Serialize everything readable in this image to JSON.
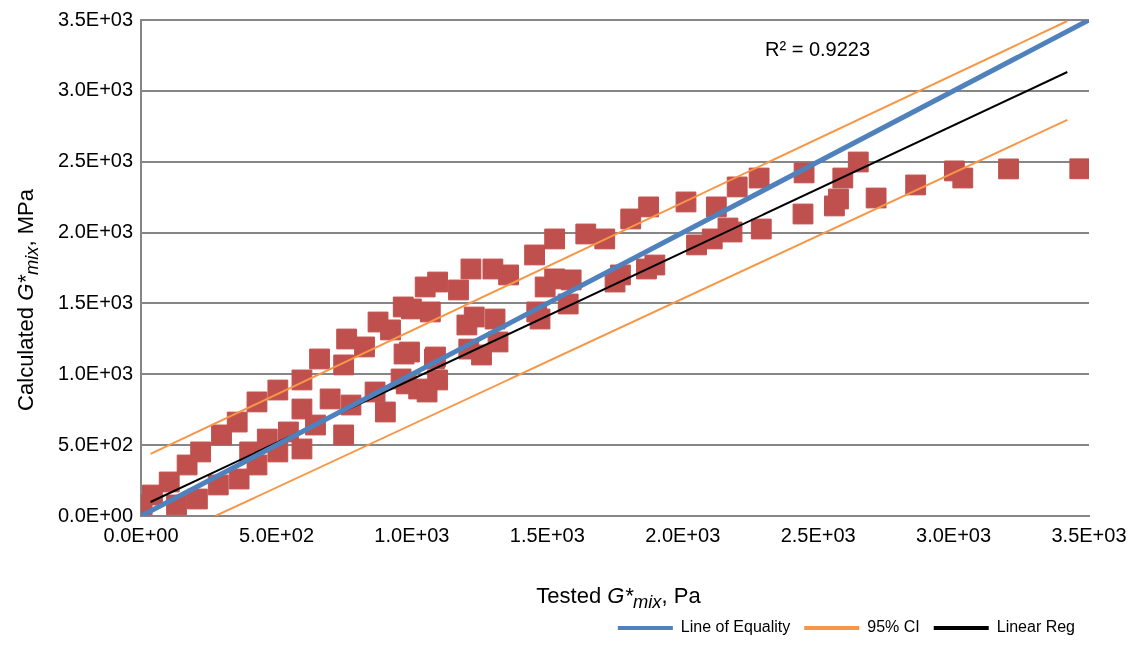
{
  "chart_data": {
    "type": "scatter",
    "xlabel": "Tested G*$_{mix}$, Pa",
    "ylabel": "Calculated G*$_{mix}$, MPa",
    "xlim": [
      0,
      3500
    ],
    "ylim": [
      0,
      3500
    ],
    "xticks": [
      {
        "value": 0,
        "label": "0.0E+00"
      },
      {
        "value": 500,
        "label": "5.0E+02"
      },
      {
        "value": 1000,
        "label": "1.0E+03"
      },
      {
        "value": 1500,
        "label": "1.5E+03"
      },
      {
        "value": 2000,
        "label": "2.0E+03"
      },
      {
        "value": 2500,
        "label": "2.5E+03"
      },
      {
        "value": 3000,
        "label": "3.0E+03"
      },
      {
        "value": 3500,
        "label": "3.5E+03"
      }
    ],
    "yticks": [
      {
        "value": 0,
        "label": "0.0E+00"
      },
      {
        "value": 500,
        "label": "5.0E+02"
      },
      {
        "value": 1000,
        "label": "1.0E+03"
      },
      {
        "value": 1500,
        "label": "1.5E+03"
      },
      {
        "value": 2000,
        "label": "2.0E+03"
      },
      {
        "value": 2500,
        "label": "2.5E+03"
      },
      {
        "value": 3000,
        "label": "3.0E+03"
      },
      {
        "value": 3500,
        "label": "3.5E+03"
      }
    ],
    "grid": "y",
    "legend": "bottom right",
    "annotations": [
      "R² = 0.9223"
    ],
    "series": [
      {
        "marker": "square",
        "color": "#c0504d",
        "x": [
          3466,
          3203,
          3003,
          3034,
          2860,
          2714,
          2648,
          2591,
          2575,
          2560,
          2444,
          2448,
          2167,
          2282,
          2290,
          2201,
          2182,
          2124,
          2109,
          2051,
          2012,
          1874,
          1808,
          1897,
          1866,
          1770,
          1750,
          1712,
          1642,
          1527,
          1453,
          1527,
          1588,
          1492,
          1577,
          1461,
          1473,
          1357,
          1299,
          1218,
          1172,
          1095,
          1049,
          1068,
          998,
          1230,
          1307,
          1203,
          1318,
          1210,
          1257,
          1087,
          971,
          1095,
          1025,
          960,
          968,
          875,
          921,
          759,
          825,
          659,
          748,
          594,
          505,
          428,
          355,
          297,
          220,
          170,
          104,
          42,
          4,
          991,
          1083,
          979,
          1056,
          864,
          902,
          775,
          698,
          594,
          644,
          748,
          544,
          505,
          594,
          428,
          362,
          285,
          208,
          131,
          466,
          401
        ],
        "values": [
          2450,
          2449,
          2435,
          2385,
          2336,
          2244,
          2498,
          2385,
          2237,
          2188,
          2131,
          2421,
          2032,
          2385,
          2025,
          2322,
          2004,
          2181,
          1955,
          1913,
          2216,
          2181,
          2096,
          1771,
          1743,
          1701,
          1651,
          1955,
          1990,
          1955,
          1842,
          1673,
          1666,
          1616,
          1496,
          1440,
          1390,
          1701,
          1743,
          1743,
          1595,
          1651,
          1616,
          1440,
          1461,
          1404,
          1390,
          1348,
          1228,
          1178,
          1136,
          1122,
          1143,
          960,
          896,
          967,
          1475,
          1369,
          1313,
          1249,
          1193,
          1108,
          1066,
          960,
          889,
          805,
          663,
          572,
          452,
          360,
          240,
          148,
          78,
          1157,
          1108,
          932,
          875,
          875,
          734,
          783,
          826,
          755,
          642,
          572,
          593,
          452,
          473,
          360,
          261,
          219,
          120,
          78,
          543,
          452
        ]
      },
      {
        "type": "line",
        "marker": "none",
        "name": "Line of Equality",
        "color": "#4f81bd",
        "x": [
          0,
          3500
        ],
        "values": [
          0,
          3500
        ]
      },
      {
        "type": "line",
        "marker": "none",
        "name": "95% CI",
        "color": "#f79646",
        "x": [
          35,
          3420
        ],
        "values": [
          438,
          3493
        ]
      },
      {
        "type": "line",
        "marker": "none",
        "color": "#f79646",
        "x": [
          274,
          3420
        ],
        "values": [
          0,
          2795
        ]
      },
      {
        "type": "line",
        "marker": "none",
        "name": "Linear Reg",
        "color": "#000000",
        "x": [
          35,
          3420
        ],
        "values": [
          99,
          3133
        ]
      }
    ]
  }
}
